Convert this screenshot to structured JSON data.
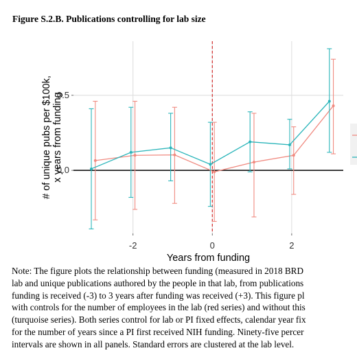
{
  "title": "Figure S.2.B. Publications controlling for lab size",
  "note_lines": [
    "Note: The figure plots the relationship between funding (measured in 2018 BRD",
    "lab and unique publications authored by the people in that lab, from publications",
    "funding is received (-3) to 3 years after funding was received (+3). This figure pl",
    "with controls for the number of employees in the lab (red series) and without this",
    "(turquoise series). Both series control for lab or PI fixed effects, calendar year fix",
    "for the number of years since a PI first received NIH funding. Ninety-five percer",
    "intervals are shown in all panels. Standard errors are clustered at the lab level."
  ],
  "colors": {
    "red_series": "#F08A80",
    "turquoise_series": "#2BB5BA",
    "grid": "#dcdcdc",
    "vline": "#d62b2b",
    "zero_line": "#000000"
  },
  "chart_data": {
    "type": "line",
    "xlabel": "Years from funding",
    "ylabel_lines": [
      "# of unique pubs per $100k,",
      "x years from funding"
    ],
    "x_ticks": [
      -2,
      0,
      2
    ],
    "y_ticks": [
      0.0,
      0.5
    ],
    "y_tick_labels": [
      "0.0",
      "0.5"
    ],
    "xlim": [
      -3.5,
      3.3
    ],
    "ylim": [
      -0.42,
      0.86
    ],
    "reference_x": 0,
    "reference_y": 0,
    "series": [
      {
        "color": "#F08A80",
        "x": [
          -2.95,
          -1.95,
          -0.95,
          0.05,
          1.05,
          2.05,
          3.05
        ],
        "y": [
          0.065,
          0.1,
          0.103,
          -0.01,
          0.055,
          0.1,
          0.43
        ],
        "lower": [
          -0.33,
          -0.26,
          -0.22,
          -0.34,
          -0.31,
          -0.16,
          0.11
        ],
        "upper": [
          0.46,
          0.46,
          0.42,
          0.32,
          0.38,
          0.29,
          0.74
        ]
      },
      {
        "color": "#2BB5BA",
        "x": [
          -3.05,
          -2.05,
          -1.05,
          -0.05,
          0.95,
          1.95,
          2.95
        ],
        "y": [
          0.01,
          0.12,
          0.15,
          0.04,
          0.19,
          0.17,
          0.46
        ],
        "lower": [
          -0.39,
          -0.18,
          -0.07,
          -0.24,
          -0.01,
          0.01,
          0.12
        ],
        "upper": [
          0.41,
          0.42,
          0.38,
          0.32,
          0.39,
          0.34,
          0.81
        ]
      }
    ]
  }
}
